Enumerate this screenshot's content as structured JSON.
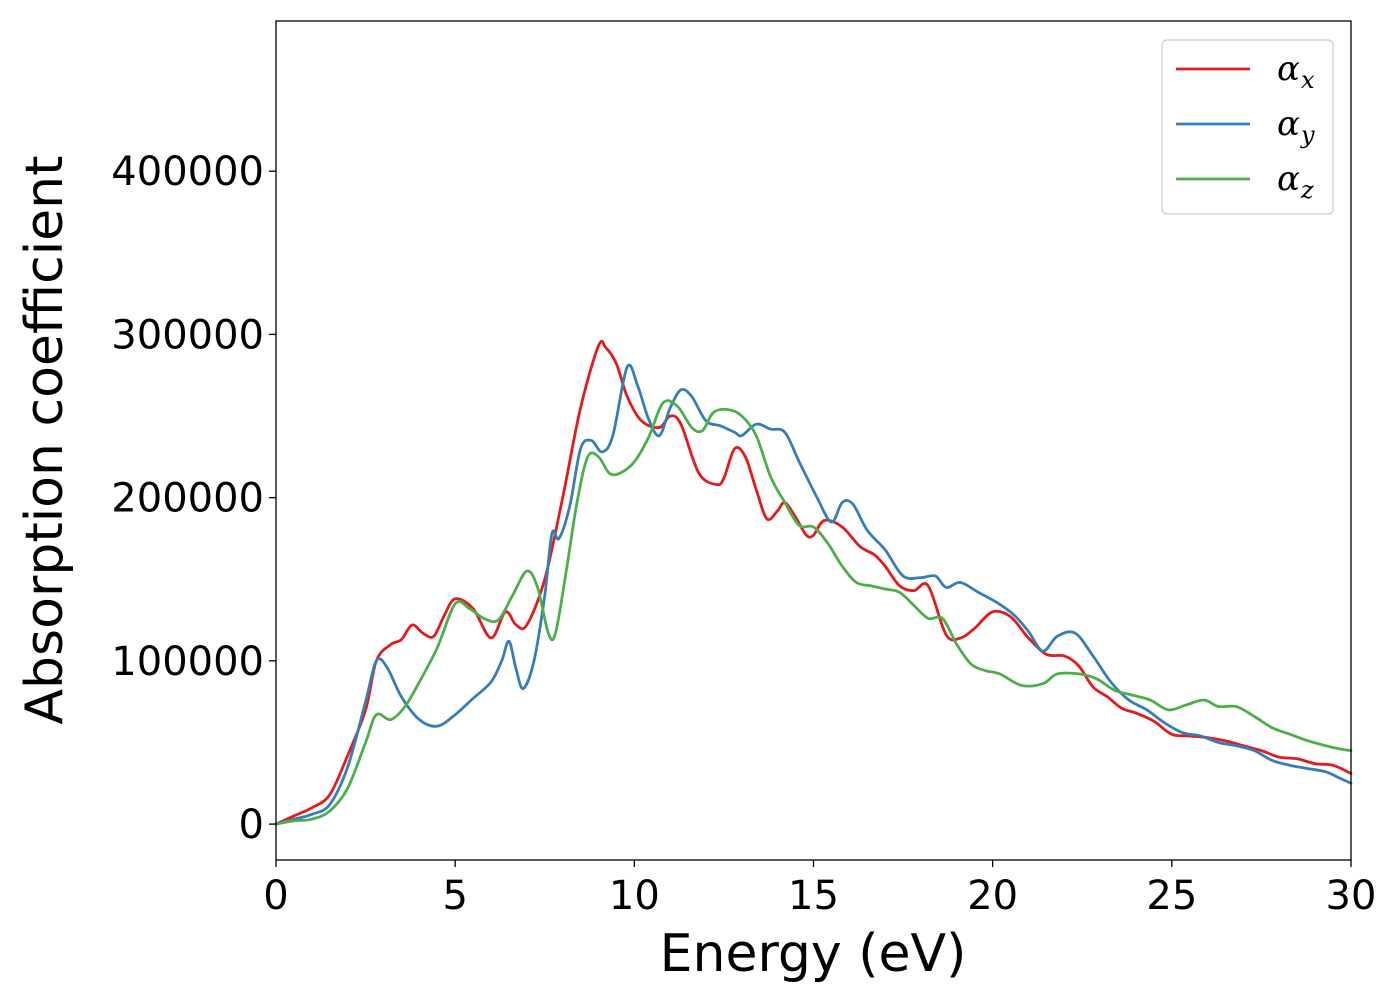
{
  "chart_data": {
    "type": "line",
    "title": "",
    "xlabel": "Energy (eV)",
    "ylabel": "Absorption coefficient",
    "xlim": [
      0,
      30
    ],
    "ylim": [
      -22000,
      492000
    ],
    "x_ticks": [
      0,
      5,
      10,
      15,
      20,
      25,
      30
    ],
    "y_ticks": [
      0,
      100000,
      200000,
      300000,
      400000
    ],
    "x_tick_labels": [
      "0",
      "5",
      "10",
      "15",
      "20",
      "25",
      "30"
    ],
    "y_tick_labels": [
      "0",
      "100000",
      "200000",
      "300000",
      "400000"
    ],
    "grid": false,
    "legend_position": "upper-right",
    "series": [
      {
        "name": "α_x",
        "symbol": "α",
        "subscript": "x",
        "color": "#e41a1c",
        "points": [
          [
            0,
            0
          ],
          [
            0.5,
            5000
          ],
          [
            1,
            10000
          ],
          [
            1.5,
            18000
          ],
          [
            2,
            42000
          ],
          [
            2.5,
            70000
          ],
          [
            2.8,
            100000
          ],
          [
            3.2,
            110000
          ],
          [
            3.5,
            113000
          ],
          [
            3.8,
            122000
          ],
          [
            4.1,
            117000
          ],
          [
            4.4,
            115000
          ],
          [
            4.7,
            128000
          ],
          [
            5,
            138000
          ],
          [
            5.5,
            132000
          ],
          [
            6,
            114000
          ],
          [
            6.4,
            130000
          ],
          [
            6.7,
            122000
          ],
          [
            7,
            122000
          ],
          [
            7.5,
            150000
          ],
          [
            8,
            200000
          ],
          [
            8.5,
            255000
          ],
          [
            9,
            293000
          ],
          [
            9.2,
            292000
          ],
          [
            9.5,
            282000
          ],
          [
            9.8,
            262000
          ],
          [
            10.2,
            247000
          ],
          [
            10.7,
            243000
          ],
          [
            11,
            250000
          ],
          [
            11.3,
            245000
          ],
          [
            11.8,
            215000
          ],
          [
            12.3,
            208000
          ],
          [
            12.5,
            212000
          ],
          [
            12.8,
            230000
          ],
          [
            13.1,
            225000
          ],
          [
            13.4,
            205000
          ],
          [
            13.7,
            187000
          ],
          [
            14,
            192000
          ],
          [
            14.2,
            197000
          ],
          [
            14.5,
            188000
          ],
          [
            14.8,
            177000
          ],
          [
            15,
            177000
          ],
          [
            15.3,
            186000
          ],
          [
            15.8,
            182000
          ],
          [
            16.3,
            170000
          ],
          [
            16.7,
            165000
          ],
          [
            17,
            158000
          ],
          [
            17.4,
            146000
          ],
          [
            17.8,
            143000
          ],
          [
            18.2,
            146000
          ],
          [
            18.7,
            116000
          ],
          [
            19.1,
            114000
          ],
          [
            19.5,
            120000
          ],
          [
            20,
            130000
          ],
          [
            20.5,
            127000
          ],
          [
            21,
            114000
          ],
          [
            21.5,
            104000
          ],
          [
            22,
            103000
          ],
          [
            22.4,
            97000
          ],
          [
            22.8,
            84000
          ],
          [
            23.2,
            78000
          ],
          [
            23.6,
            71000
          ],
          [
            24,
            68000
          ],
          [
            24.5,
            63000
          ],
          [
            25,
            55000
          ],
          [
            25.5,
            54000
          ],
          [
            26,
            53000
          ],
          [
            26.5,
            51000
          ],
          [
            27,
            48000
          ],
          [
            27.5,
            45000
          ],
          [
            28,
            41000
          ],
          [
            28.5,
            40000
          ],
          [
            29,
            37000
          ],
          [
            29.5,
            36000
          ],
          [
            30,
            31000
          ]
        ]
      },
      {
        "name": "α_y",
        "symbol": "α",
        "subscript": "y",
        "color": "#377eb8",
        "points": [
          [
            0,
            0
          ],
          [
            0.5,
            3000
          ],
          [
            1,
            6000
          ],
          [
            1.5,
            12000
          ],
          [
            2,
            35000
          ],
          [
            2.5,
            75000
          ],
          [
            2.8,
            100000
          ],
          [
            3.1,
            96000
          ],
          [
            3.5,
            78000
          ],
          [
            4,
            64000
          ],
          [
            4.5,
            60000
          ],
          [
            5,
            67000
          ],
          [
            5.5,
            77000
          ],
          [
            6,
            87000
          ],
          [
            6.3,
            100000
          ],
          [
            6.5,
            112000
          ],
          [
            6.7,
            95000
          ],
          [
            6.9,
            83000
          ],
          [
            7.2,
            100000
          ],
          [
            7.5,
            140000
          ],
          [
            7.7,
            178000
          ],
          [
            7.9,
            175000
          ],
          [
            8.2,
            195000
          ],
          [
            8.5,
            230000
          ],
          [
            8.8,
            235000
          ],
          [
            9.1,
            228000
          ],
          [
            9.4,
            238000
          ],
          [
            9.8,
            280000
          ],
          [
            10.1,
            268000
          ],
          [
            10.4,
            248000
          ],
          [
            10.7,
            238000
          ],
          [
            11,
            255000
          ],
          [
            11.3,
            266000
          ],
          [
            11.6,
            262000
          ],
          [
            12,
            247000
          ],
          [
            12.4,
            244000
          ],
          [
            12.8,
            240000
          ],
          [
            13,
            238000
          ],
          [
            13.4,
            245000
          ],
          [
            13.8,
            242000
          ],
          [
            14.2,
            240000
          ],
          [
            14.6,
            222000
          ],
          [
            15.1,
            200000
          ],
          [
            15.5,
            185000
          ],
          [
            15.8,
            197000
          ],
          [
            16.1,
            196000
          ],
          [
            16.5,
            180000
          ],
          [
            17,
            168000
          ],
          [
            17.5,
            152000
          ],
          [
            18,
            151000
          ],
          [
            18.4,
            152000
          ],
          [
            18.7,
            145000
          ],
          [
            19.1,
            148000
          ],
          [
            19.6,
            142000
          ],
          [
            20.1,
            136000
          ],
          [
            20.6,
            128000
          ],
          [
            21,
            118000
          ],
          [
            21.4,
            106000
          ],
          [
            21.8,
            115000
          ],
          [
            22.3,
            117000
          ],
          [
            22.8,
            103000
          ],
          [
            23.3,
            87000
          ],
          [
            23.8,
            76000
          ],
          [
            24.3,
            70000
          ],
          [
            24.8,
            62000
          ],
          [
            25.3,
            56000
          ],
          [
            25.8,
            54000
          ],
          [
            26.3,
            50000
          ],
          [
            26.8,
            48000
          ],
          [
            27.3,
            45000
          ],
          [
            27.8,
            39000
          ],
          [
            28.3,
            36000
          ],
          [
            28.8,
            34000
          ],
          [
            29.3,
            32000
          ],
          [
            29.7,
            28000
          ],
          [
            30,
            25000
          ]
        ]
      },
      {
        "name": "α_z",
        "symbol": "α",
        "subscript": "z",
        "color": "#4daf4a",
        "points": [
          [
            0,
            0
          ],
          [
            0.5,
            2000
          ],
          [
            1,
            3000
          ],
          [
            1.5,
            8000
          ],
          [
            2,
            22000
          ],
          [
            2.5,
            50000
          ],
          [
            2.8,
            67000
          ],
          [
            3.2,
            64000
          ],
          [
            3.6,
            72000
          ],
          [
            4,
            87000
          ],
          [
            4.5,
            108000
          ],
          [
            5,
            135000
          ],
          [
            5.4,
            132000
          ],
          [
            5.8,
            126000
          ],
          [
            6.2,
            125000
          ],
          [
            6.6,
            140000
          ],
          [
            7,
            155000
          ],
          [
            7.3,
            145000
          ],
          [
            7.6,
            117000
          ],
          [
            7.8,
            117000
          ],
          [
            8.1,
            155000
          ],
          [
            8.4,
            197000
          ],
          [
            8.7,
            225000
          ],
          [
            9,
            225000
          ],
          [
            9.3,
            215000
          ],
          [
            9.6,
            215000
          ],
          [
            10,
            222000
          ],
          [
            10.4,
            237000
          ],
          [
            10.8,
            258000
          ],
          [
            11.2,
            256000
          ],
          [
            11.6,
            243000
          ],
          [
            11.9,
            241000
          ],
          [
            12.2,
            252000
          ],
          [
            12.6,
            254000
          ],
          [
            13,
            250000
          ],
          [
            13.4,
            238000
          ],
          [
            13.8,
            213000
          ],
          [
            14.2,
            197000
          ],
          [
            14.6,
            183000
          ],
          [
            15,
            182000
          ],
          [
            15.4,
            172000
          ],
          [
            15.8,
            158000
          ],
          [
            16.2,
            148000
          ],
          [
            16.6,
            146000
          ],
          [
            17,
            144000
          ],
          [
            17.4,
            142000
          ],
          [
            17.8,
            134000
          ],
          [
            18.2,
            126000
          ],
          [
            18.6,
            126000
          ],
          [
            19,
            110000
          ],
          [
            19.4,
            98000
          ],
          [
            19.8,
            94000
          ],
          [
            20.2,
            92000
          ],
          [
            20.8,
            85000
          ],
          [
            21.4,
            86000
          ],
          [
            21.8,
            92000
          ],
          [
            22.4,
            92000
          ],
          [
            22.9,
            89000
          ],
          [
            23.4,
            82000
          ],
          [
            23.9,
            79000
          ],
          [
            24.4,
            76000
          ],
          [
            24.9,
            70000
          ],
          [
            25.4,
            73000
          ],
          [
            25.9,
            76000
          ],
          [
            26.3,
            72000
          ],
          [
            26.8,
            72000
          ],
          [
            27.3,
            66000
          ],
          [
            27.8,
            59000
          ],
          [
            28.3,
            55000
          ],
          [
            28.8,
            51000
          ],
          [
            29.3,
            48000
          ],
          [
            29.7,
            46000
          ],
          [
            30,
            45000
          ]
        ]
      }
    ]
  }
}
